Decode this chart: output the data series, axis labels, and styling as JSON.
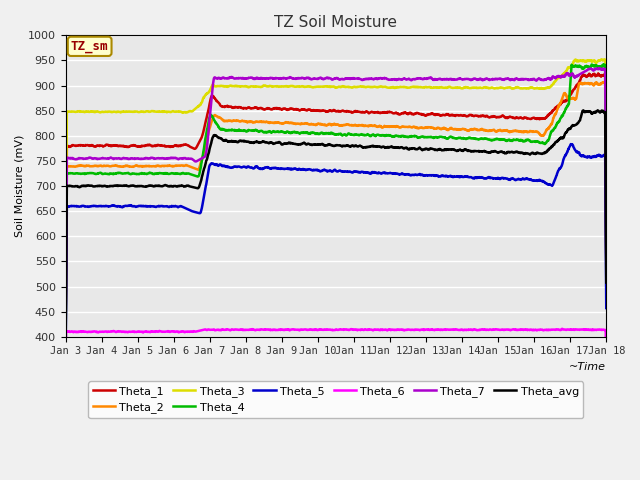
{
  "title": "TZ Soil Moisture",
  "xlabel": "~Time",
  "ylabel": "Soil Moisture (mV)",
  "ylim": [
    400,
    1000
  ],
  "yticks": [
    400,
    450,
    500,
    550,
    600,
    650,
    700,
    750,
    800,
    850,
    900,
    950,
    1000
  ],
  "bg_color": "#e8e8e8",
  "fig_color": "#f0f0f0",
  "label_box": "TZ_sm",
  "series_colors": {
    "Theta_1": "#cc0000",
    "Theta_2": "#ff8800",
    "Theta_3": "#dddd00",
    "Theta_4": "#00bb00",
    "Theta_5": "#0000cc",
    "Theta_6": "#ff00ff",
    "Theta_7": "#aa00cc",
    "Theta_avg": "#000000"
  },
  "xtick_labels": [
    "Jan 3",
    "Jan 4",
    "Jan 5",
    "Jan 6",
    "Jan 7",
    "Jan 8",
    "Jan 9",
    "Jan 10",
    "Jan 11",
    "Jan 12",
    "Jan 13",
    "Jan 14",
    "Jan 15",
    "Jan 16",
    "Jan 17",
    "Jan 18"
  ]
}
